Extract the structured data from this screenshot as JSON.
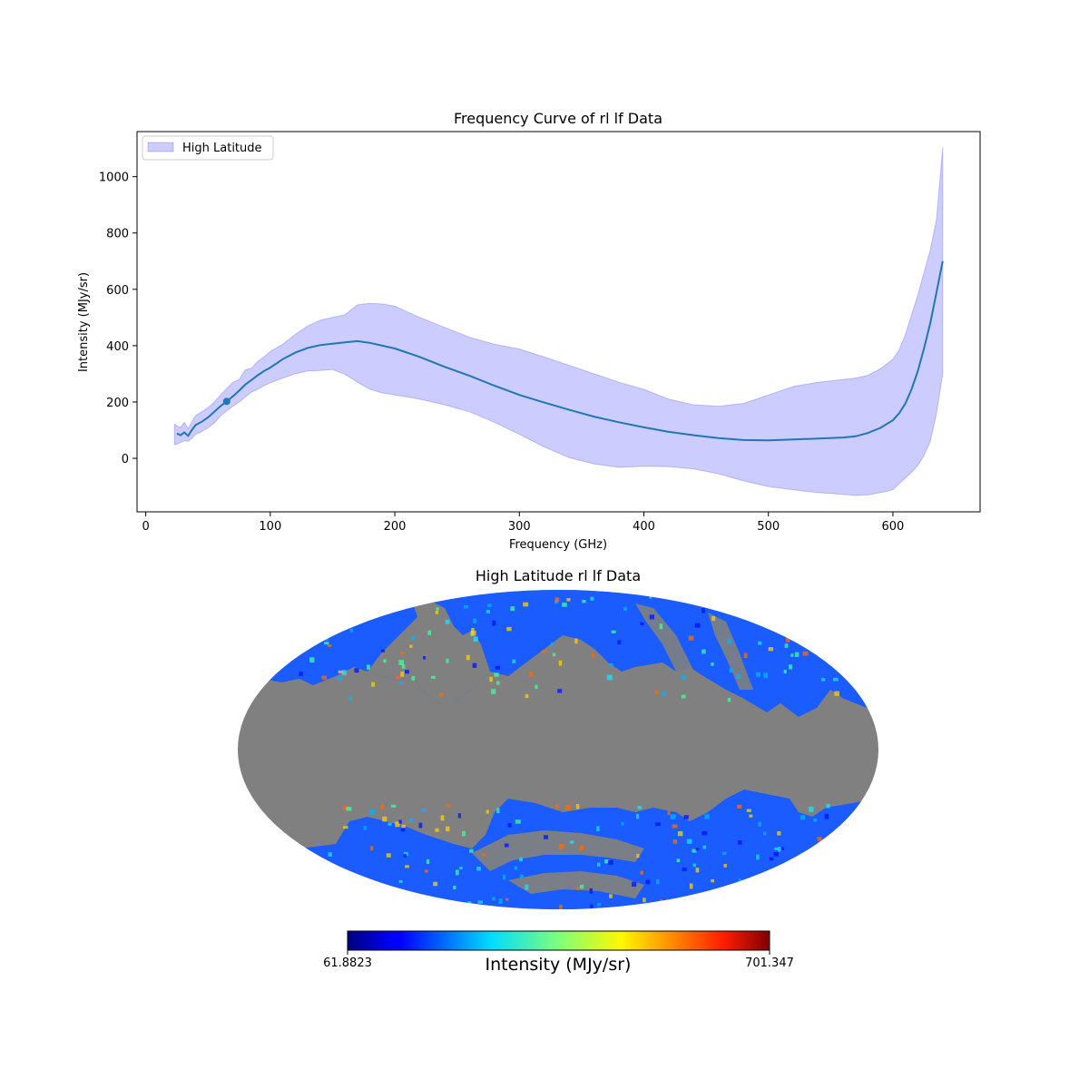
{
  "chart_data": [
    {
      "type": "line",
      "title": "Frequency Curve of rl lf Data",
      "xlabel": "Frequency (GHz)",
      "ylabel": "Intensity (MJy/sr)",
      "xlim": [
        -7,
        670
      ],
      "ylim": [
        -190,
        1160
      ],
      "xticks": [
        0,
        100,
        200,
        300,
        400,
        500,
        600
      ],
      "yticks": [
        0,
        200,
        400,
        600,
        800,
        1000
      ],
      "grid": false,
      "legend": {
        "placement": "top-left",
        "entries": [
          "High Latitude"
        ]
      },
      "series": [
        {
          "kind": "line",
          "color": "#1f77b4",
          "x": [
            25,
            28,
            31,
            34,
            37,
            40,
            45,
            50,
            55,
            60,
            65,
            70,
            75,
            80,
            85,
            90,
            95,
            100,
            110,
            120,
            130,
            140,
            150,
            160,
            170,
            180,
            190,
            200,
            220,
            240,
            260,
            280,
            300,
            320,
            340,
            360,
            380,
            400,
            420,
            440,
            460,
            480,
            500,
            520,
            540,
            560,
            570,
            580,
            590,
            600,
            605,
            610,
            615,
            620,
            625,
            630,
            635,
            640
          ],
          "y": [
            88,
            82,
            92,
            80,
            100,
            118,
            130,
            145,
            165,
            185,
            202,
            220,
            240,
            262,
            278,
            295,
            310,
            322,
            352,
            375,
            392,
            402,
            407,
            412,
            416,
            410,
            400,
            390,
            360,
            325,
            293,
            258,
            225,
            198,
            172,
            148,
            128,
            110,
            94,
            82,
            72,
            65,
            64,
            67,
            70,
            74,
            78,
            90,
            108,
            135,
            160,
            195,
            245,
            310,
            390,
            480,
            590,
            700
          ]
        },
        {
          "kind": "fill_between",
          "name": "High Latitude",
          "color": "#0000ff",
          "alpha": 0.2,
          "x": [
            23,
            25,
            28,
            31,
            34,
            37,
            40,
            45,
            50,
            55,
            60,
            65,
            70,
            75,
            80,
            85,
            90,
            95,
            100,
            110,
            120,
            130,
            140,
            150,
            160,
            170,
            180,
            190,
            200,
            210,
            220,
            240,
            260,
            280,
            300,
            320,
            340,
            360,
            380,
            400,
            420,
            440,
            460,
            480,
            500,
            520,
            540,
            560,
            570,
            580,
            590,
            600,
            605,
            610,
            615,
            620,
            625,
            630,
            635,
            640
          ],
          "upper": [
            122,
            115,
            110,
            128,
            105,
            130,
            152,
            165,
            180,
            200,
            225,
            248,
            270,
            280,
            315,
            320,
            345,
            360,
            380,
            405,
            440,
            470,
            490,
            500,
            510,
            545,
            550,
            548,
            540,
            520,
            500,
            465,
            430,
            405,
            388,
            360,
            330,
            300,
            270,
            245,
            210,
            190,
            185,
            195,
            225,
            255,
            270,
            280,
            285,
            295,
            318,
            352,
            385,
            440,
            510,
            580,
            660,
            740,
            850,
            1105
          ],
          "lower": [
            48,
            50,
            56,
            62,
            60,
            70,
            85,
            95,
            108,
            125,
            150,
            168,
            185,
            200,
            218,
            235,
            245,
            258,
            268,
            285,
            300,
            310,
            312,
            315,
            298,
            270,
            245,
            232,
            225,
            218,
            210,
            190,
            165,
            128,
            85,
            40,
            2,
            -20,
            -32,
            -28,
            -30,
            -38,
            -55,
            -80,
            -100,
            -112,
            -122,
            -128,
            -132,
            -130,
            -122,
            -112,
            -90,
            -70,
            -50,
            -25,
            10,
            60,
            160,
            300
          ]
        }
      ],
      "markers": [
        {
          "x": 65,
          "y": 202,
          "color": "#1f77b4"
        }
      ]
    },
    {
      "type": "heatmap",
      "projection": "mollweide",
      "title": "High Latitude rl lf Data",
      "colormap": "jet",
      "masked_color": "#808080",
      "colorbar": {
        "label": "Intensity (MJy/sr)",
        "min_label": "61.8823",
        "max_label": "701.347",
        "min": 61.8823,
        "max": 701.347
      }
    }
  ]
}
